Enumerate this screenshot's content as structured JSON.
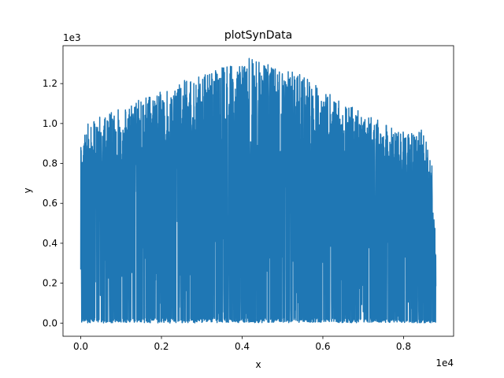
{
  "chart_data": {
    "type": "line",
    "title": "plotSynData",
    "xlabel": "x",
    "ylabel": "y",
    "x_multiplier_label": "1e4",
    "y_multiplier_label": "1e3",
    "xlim": [
      -0.044,
      0.924
    ],
    "ylim": [
      -0.066,
      1.39
    ],
    "x_unit_scale": 10000,
    "y_unit_scale": 1000,
    "x_ticks": [
      0.0,
      0.2,
      0.4,
      0.6,
      0.8
    ],
    "y_ticks": [
      0.0,
      0.2,
      0.4,
      0.6,
      0.8,
      1.0,
      1.2
    ],
    "x_tick_labels": [
      "0.0",
      "0.2",
      "0.4",
      "0.6",
      "0.8"
    ],
    "y_tick_labels": [
      "0.0",
      "0.2",
      "0.4",
      "0.6",
      "0.8",
      "1.0",
      "1.2"
    ],
    "grid": false,
    "series": [
      {
        "color": "#1f77b4",
        "x_range": [
          0,
          8800
        ],
        "description_envelope": {
          "x": [
            0,
            100,
            500,
            1000,
            1500,
            2000,
            2500,
            3000,
            3500,
            4000,
            4200,
            4500,
            5000,
            5500,
            6000,
            6500,
            7000,
            7500,
            8000,
            8500,
            8700,
            8800
          ],
          "peak": [
            880,
            990,
            1040,
            1080,
            1130,
            1160,
            1220,
            1250,
            1290,
            1300,
            1330,
            1310,
            1270,
            1250,
            1160,
            1120,
            1060,
            1000,
            960,
            970,
            820,
            390
          ],
          "trough": [
            0,
            0,
            0,
            0,
            0,
            0,
            0,
            0,
            0,
            0,
            0,
            0,
            0,
            0,
            0,
            0,
            0,
            0,
            0,
            0,
            0,
            0
          ]
        }
      }
    ]
  }
}
